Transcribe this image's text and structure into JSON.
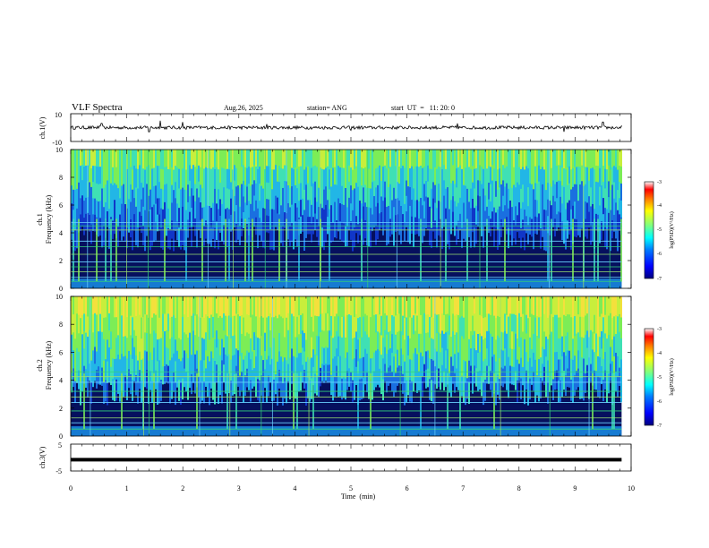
{
  "header": {
    "title": "VLF Spectra",
    "date": "Aug.26, 2025",
    "station": "station= ANG",
    "start_ut": "start  UT  =   11: 20: 0"
  },
  "colors": {
    "background": "#ffffff",
    "axis": "#000000",
    "colormap": [
      "#00007f",
      "#0000ff",
      "#007fff",
      "#00ffff",
      "#7fff7f",
      "#ffff00",
      "#ff7f00",
      "#ff0000",
      "#7f0000"
    ],
    "spectrogram_base": "#06105e",
    "spectrogram_high": "#56d65a",
    "line_colors": [
      "#34d07a",
      "#6ad0ff",
      "#9ee06e"
    ]
  },
  "chart_data": [
    {
      "type": "line",
      "name": "ch1-waveform",
      "ylabel": "ch.1(V)",
      "ylim": [
        -10,
        10
      ],
      "yticks": [
        "10",
        "-10"
      ],
      "xlim": [
        0,
        10
      ],
      "baseline": 0,
      "noise_amplitude": 1.2,
      "spikes": [
        {
          "x": 0.55,
          "y": 3
        },
        {
          "x": 1.4,
          "y": -3
        },
        {
          "x": 1.6,
          "y": 5
        },
        {
          "x": 2.0,
          "y": 4
        },
        {
          "x": 3.5,
          "y": 2.5
        },
        {
          "x": 5.0,
          "y": -2
        },
        {
          "x": 6.9,
          "y": 3
        },
        {
          "x": 8.8,
          "y": -3
        },
        {
          "x": 9.5,
          "y": 4
        }
      ]
    },
    {
      "type": "heatmap",
      "name": "ch1-spectrogram",
      "ylabel_top": "ch.1",
      "ylabel": "Frequency  (kHz)",
      "ylim": [
        0,
        10
      ],
      "yticks": [
        "0",
        "2",
        "4",
        "6",
        "8",
        "10"
      ],
      "xlim": [
        0,
        9.83
      ],
      "colorbar": {
        "label": "log(PSD)(V²/Hz)",
        "range": [
          -7,
          -3
        ],
        "ticks": [
          "-3",
          "-4",
          "-5",
          "-6",
          "-7"
        ]
      },
      "emission_band_khz": [
        5,
        10
      ],
      "horizontal_lines_khz": [
        0.5,
        0.8,
        1.2,
        1.55,
        1.9,
        2.45,
        3.0,
        3.4,
        4.2,
        4.5,
        4.75
      ],
      "vertical_lines_min": [
        0.3,
        1.0,
        1.38,
        2.45,
        2.9,
        3.47,
        3.85,
        4.45,
        5.3,
        5.82,
        6.6,
        7.3,
        8.54,
        9.15,
        9.62
      ]
    },
    {
      "type": "heatmap",
      "name": "ch2-spectrogram",
      "ylabel_top": "ch.2",
      "ylabel": "Frequency  (kHz)",
      "ylim": [
        0,
        10
      ],
      "yticks": [
        "0",
        "2",
        "4",
        "6",
        "8",
        "10"
      ],
      "xlim": [
        0,
        9.83
      ],
      "colorbar": {
        "label": "log(PSD)(V²/Hz)",
        "range": [
          -7,
          -3
        ],
        "ticks": [
          "-3",
          "-4",
          "-5",
          "-6",
          "-7"
        ]
      },
      "emission_band_khz": [
        4.5,
        10
      ],
      "horizontal_lines_khz": [
        0.5,
        0.95,
        1.3,
        1.8,
        2.4,
        2.8,
        3.2,
        3.85,
        4.25,
        4.6
      ],
      "vertical_lines_min": [
        0.35,
        1.3,
        1.4,
        2.3,
        2.84,
        3.4,
        3.6,
        4.25,
        5.88,
        6.5,
        7.67,
        8.55,
        9.25
      ]
    },
    {
      "type": "line",
      "name": "ch3-waveform",
      "ylabel": "ch.3(V)",
      "ylim": [
        -5,
        5
      ],
      "yticks": [
        "5",
        "-5"
      ],
      "xlim": [
        0,
        9.83
      ],
      "baseline": -0.8
    }
  ],
  "xaxis": {
    "label": "Time  (min)",
    "ticks": [
      "0",
      "1",
      "2",
      "3",
      "4",
      "5",
      "6",
      "7",
      "8",
      "9",
      "10"
    ],
    "range": [
      0,
      10
    ]
  }
}
